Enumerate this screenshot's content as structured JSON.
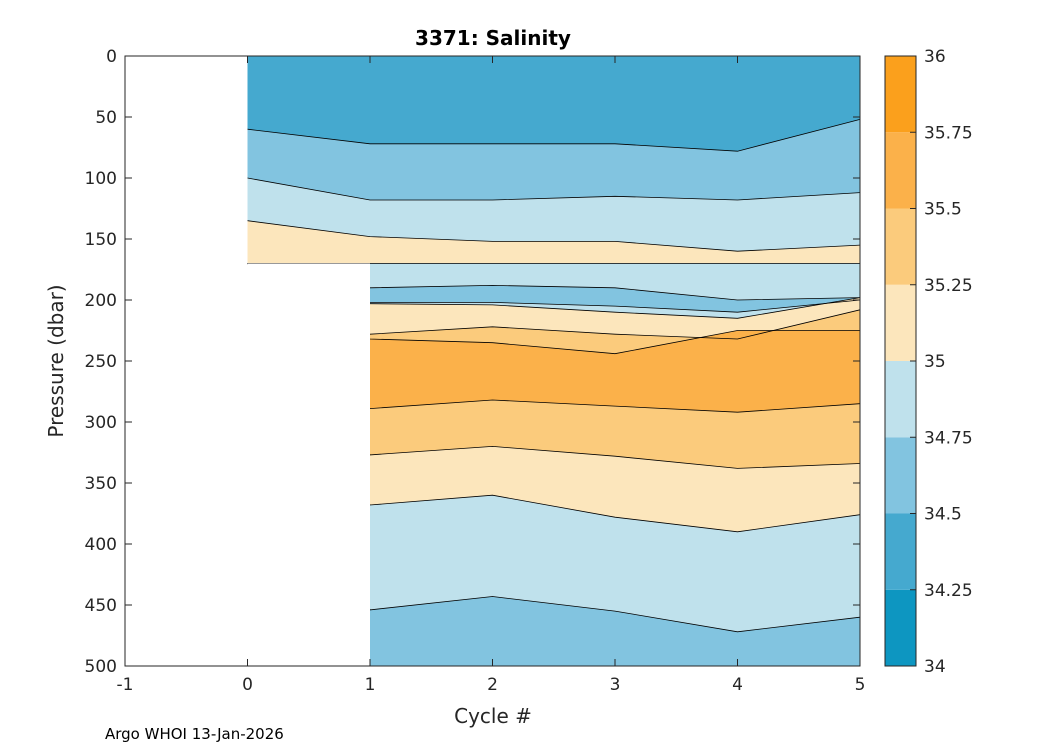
{
  "chart_data": {
    "type": "contour",
    "title": "3371:  Salinity",
    "xlabel": "Cycle #",
    "ylabel": "Pressure (dbar)",
    "xlim": [
      -1,
      5
    ],
    "ylim": [
      0,
      500
    ],
    "y_reversed": true,
    "xticks": [
      "-1",
      "0",
      "1",
      "2",
      "3",
      "4",
      "5"
    ],
    "yticks": [
      "0",
      "50",
      "100",
      "150",
      "200",
      "250",
      "300",
      "350",
      "400",
      "450",
      "500"
    ],
    "colorbar": {
      "min": 34,
      "max": 36,
      "ticks": [
        "34",
        "34.25",
        "34.5",
        "34.75",
        "35",
        "35.25",
        "35.5",
        "35.75",
        "36"
      ],
      "colors": [
        "#0d96c1",
        "#45a9cf",
        "#82c4e0",
        "#bfe1ec",
        "#fce6bc",
        "#fbcb7c",
        "#fbb14a",
        "#fba01c"
      ]
    },
    "cycles": [
      0,
      1,
      2,
      3,
      4,
      5
    ],
    "profile_max_pressure": [
      170,
      500,
      500,
      500,
      500,
      500
    ],
    "bands": [
      {
        "range": [
          34.25,
          34.5
        ],
        "top": [
          0,
          0,
          0,
          0,
          0,
          0
        ],
        "bottom": [
          60,
          72,
          72,
          72,
          78,
          52
        ]
      },
      {
        "range": [
          34.5,
          34.75
        ],
        "top": [
          60,
          72,
          72,
          72,
          78,
          52
        ],
        "bottom": [
          100,
          118,
          118,
          115,
          118,
          112
        ]
      },
      {
        "range": [
          34.75,
          35.0
        ],
        "top": [
          100,
          118,
          118,
          115,
          118,
          112
        ],
        "bottom": [
          135,
          148,
          152,
          152,
          160,
          155
        ]
      },
      {
        "range": [
          35.0,
          35.25
        ],
        "top": [
          135,
          148,
          152,
          152,
          160,
          155
        ],
        "bottom": [
          170,
          170,
          170,
          170,
          170,
          170
        ]
      },
      {
        "range": [
          34.75,
          35.0
        ],
        "top": [
          170,
          170,
          170,
          170,
          170,
          170
        ],
        "bottom": [
          170,
          190,
          188,
          190,
          200,
          198
        ]
      },
      {
        "range": [
          34.5,
          34.75
        ],
        "top": [
          170,
          190,
          188,
          190,
          200,
          198
        ],
        "bottom": [
          170,
          202,
          202,
          205,
          210,
          200
        ]
      },
      {
        "range": [
          34.75,
          35.0
        ],
        "top": [
          170,
          202,
          202,
          205,
          210,
          200
        ],
        "bottom": [
          170,
          203,
          204,
          210,
          215,
          198
        ]
      },
      {
        "range": [
          35.0,
          35.25
        ],
        "top": [
          170,
          203,
          204,
          210,
          215,
          198
        ],
        "bottom": [
          170,
          228,
          222,
          228,
          232,
          208
        ]
      },
      {
        "range": [
          35.25,
          35.5
        ],
        "top": [
          170,
          228,
          222,
          228,
          232,
          208
        ],
        "bottom": [
          170,
          232,
          235,
          244,
          225,
          225
        ]
      },
      {
        "range": [
          35.5,
          35.75
        ],
        "top": [
          170,
          232,
          235,
          244,
          225,
          225
        ],
        "bottom": [
          170,
          289,
          282,
          287,
          292,
          285
        ]
      },
      {
        "range": [
          35.25,
          35.5
        ],
        "top": [
          170,
          289,
          282,
          287,
          292,
          285
        ],
        "bottom": [
          170,
          327,
          320,
          328,
          338,
          334
        ]
      },
      {
        "range": [
          35.0,
          35.25
        ],
        "top": [
          170,
          327,
          320,
          328,
          338,
          334
        ],
        "bottom": [
          170,
          368,
          360,
          378,
          390,
          376
        ]
      },
      {
        "range": [
          34.75,
          35.0
        ],
        "top": [
          170,
          368,
          360,
          378,
          390,
          376
        ],
        "bottom": [
          170,
          454,
          443,
          455,
          472,
          460
        ]
      },
      {
        "range": [
          34.5,
          34.75
        ],
        "top": [
          170,
          454,
          443,
          455,
          472,
          460
        ],
        "bottom": [
          170,
          500,
          500,
          500,
          500,
          500
        ]
      }
    ]
  },
  "footer": "Argo WHOI 13-Jan-2026"
}
